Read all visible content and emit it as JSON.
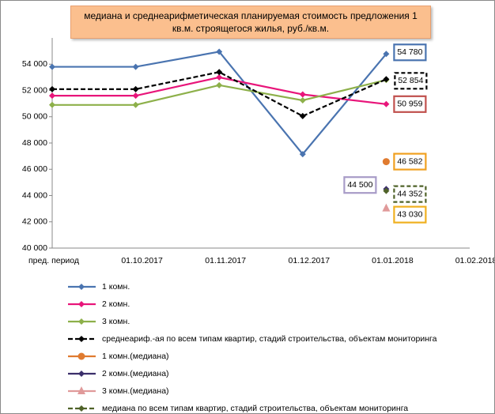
{
  "chart_data": {
    "type": "line",
    "title": "медиана и среднеарифметическая планируемая стоимость предложения 1 кв.м. строящегося жилья, руб./кв.м.",
    "categories": [
      "пред. период",
      "01.10.2017",
      "01.11.2017",
      "01.12.2017",
      "01.01.2018",
      "01.02.2018"
    ],
    "ylim": [
      40000,
      56000
    ],
    "yticks": [
      {
        "value": 40000,
        "label": "40 000"
      },
      {
        "value": 42000,
        "label": "42 000"
      },
      {
        "value": 44000,
        "label": "44 000"
      },
      {
        "value": 46000,
        "label": "46 000"
      },
      {
        "value": 48000,
        "label": "48 000"
      },
      {
        "value": 50000,
        "label": "50 000"
      },
      {
        "value": 52000,
        "label": "52 000"
      },
      {
        "value": 54000,
        "label": "54 000"
      }
    ],
    "grid": false,
    "legend": "bottom",
    "series": [
      {
        "name": "1 комн.",
        "color": "#4a74b0",
        "marker": "diamond",
        "dash": false,
        "label_border": "#4a74b0",
        "values": [
          53800,
          53800,
          54950,
          47150,
          54780,
          null
        ],
        "value_labels": [
          null,
          null,
          null,
          null,
          "54 780",
          null
        ]
      },
      {
        "name": "2 комн.",
        "color": "#e8157a",
        "marker": "diamond",
        "dash": false,
        "label_border": "#c0504d",
        "values": [
          51600,
          51600,
          53000,
          51700,
          50959,
          null
        ],
        "value_labels": [
          null,
          null,
          null,
          null,
          "50 959",
          null
        ]
      },
      {
        "name": "3 комн.",
        "color": "#8db04a",
        "marker": "diamond",
        "dash": false,
        "values": [
          50900,
          50900,
          52400,
          51250,
          52800,
          null
        ]
      },
      {
        "name": "среднеариф.-ая по всем типам квартир, стадий строительства, объектам мониторинга",
        "color": "#000000",
        "marker": "diamond",
        "dash": true,
        "label_border": "#000000",
        "values": [
          52100,
          52100,
          53400,
          50050,
          52854,
          null
        ],
        "value_labels": [
          null,
          null,
          null,
          null,
          "52 854",
          null
        ]
      },
      {
        "name": "1 комн.(медиана)",
        "color": "#e07b30",
        "marker": "circle",
        "dash": false,
        "label_border": "#f0a020",
        "values": [
          null,
          null,
          null,
          null,
          46582,
          null
        ],
        "value_labels": [
          null,
          null,
          null,
          null,
          "46 582",
          null
        ]
      },
      {
        "name": "2 комн.(медиана)",
        "color": "#3b2f6b",
        "marker": "diamond",
        "dash": false,
        "label_border": "#a89cc8",
        "values": [
          null,
          null,
          null,
          null,
          44500,
          null
        ],
        "value_labels": [
          null,
          null,
          null,
          null,
          "44 500",
          null
        ]
      },
      {
        "name": "3 комн.(медиана)",
        "color": "#e09a9a",
        "marker": "triangle",
        "dash": false,
        "label_border": "#f0b020",
        "values": [
          null,
          null,
          null,
          null,
          43030,
          null
        ],
        "value_labels": [
          null,
          null,
          null,
          null,
          "43 030",
          null
        ]
      },
      {
        "name": "медиана по всем типам квартир, стадий строительства, объектам мониторинга",
        "color": "#4f6228",
        "marker": "diamond",
        "dash": true,
        "label_border": "#4f6228",
        "values": [
          null,
          null,
          null,
          null,
          44352,
          null
        ],
        "value_labels": [
          null,
          null,
          null,
          null,
          "44 352",
          null
        ]
      }
    ]
  }
}
